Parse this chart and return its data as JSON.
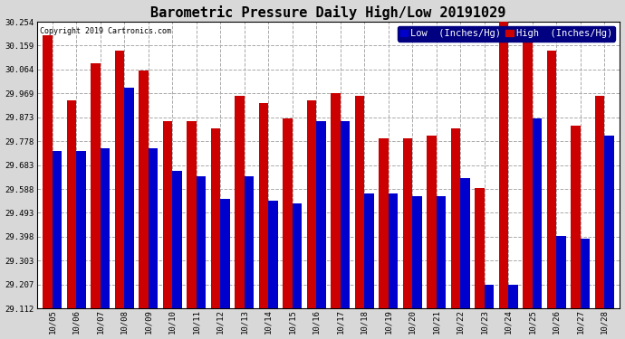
{
  "title": "Barometric Pressure Daily High/Low 20191029",
  "copyright": "Copyright 2019 Cartronics.com",
  "legend_low": "Low  (Inches/Hg)",
  "legend_high": "High  (Inches/Hg)",
  "categories": [
    "10/05",
    "10/06",
    "10/07",
    "10/08",
    "10/09",
    "10/10",
    "10/11",
    "10/12",
    "10/13",
    "10/14",
    "10/15",
    "10/16",
    "10/17",
    "10/18",
    "10/19",
    "10/20",
    "10/21",
    "10/22",
    "10/23",
    "10/24",
    "10/25",
    "10/26",
    "10/27",
    "10/28"
  ],
  "low_values": [
    29.74,
    29.74,
    29.75,
    29.99,
    29.75,
    29.66,
    29.64,
    29.55,
    29.64,
    29.54,
    29.53,
    29.86,
    29.86,
    29.57,
    29.57,
    29.56,
    29.56,
    29.63,
    29.207,
    29.207,
    29.87,
    29.4,
    29.39,
    29.8
  ],
  "high_values": [
    30.2,
    29.94,
    30.09,
    30.14,
    30.06,
    29.86,
    29.86,
    29.83,
    29.96,
    29.93,
    29.87,
    29.94,
    29.97,
    29.96,
    29.79,
    29.79,
    29.8,
    29.83,
    29.59,
    30.254,
    30.2,
    30.14,
    29.84,
    29.96
  ],
  "ymin": 29.112,
  "ymax": 30.254,
  "yticks": [
    29.112,
    29.207,
    29.303,
    29.398,
    29.493,
    29.588,
    29.683,
    29.778,
    29.873,
    29.969,
    30.064,
    30.159,
    30.254
  ],
  "bar_width": 0.4,
  "low_color": "#0000cc",
  "high_color": "#cc0000",
  "bg_color": "#d8d8d8",
  "plot_bg_color": "#ffffff",
  "grid_color": "#aaaaaa",
  "title_fontsize": 11,
  "tick_fontsize": 6.5,
  "legend_fontsize": 7.5
}
